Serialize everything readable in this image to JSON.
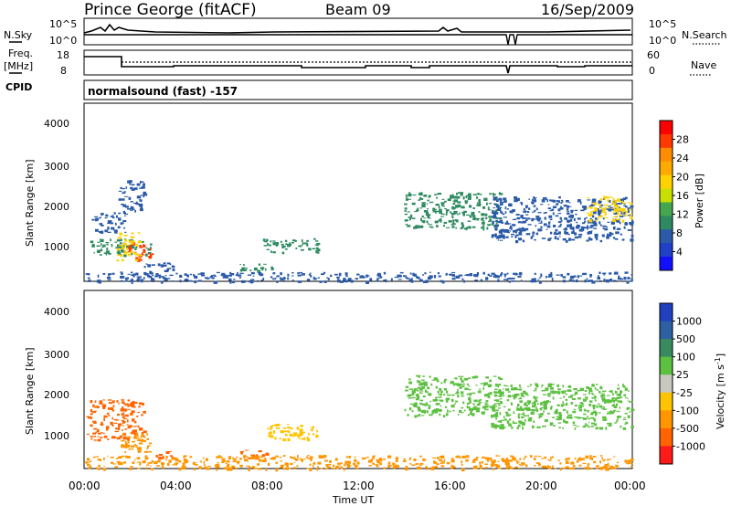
{
  "header": {
    "station": "Prince George (fitACF)",
    "beam": "Beam 09",
    "date": "16/Sep/2009"
  },
  "left_labels": {
    "nsky": "N.Sky",
    "freq": "Freq.",
    "freq_unit": "[MHz]",
    "cpid": "CPID"
  },
  "right_labels": {
    "nsearch": "N.Search",
    "nave": "Nave"
  },
  "top_axes": {
    "noise_left_ticks": [
      "10^5",
      "10^0"
    ],
    "noise_right_ticks": [
      "10^5",
      "10^0"
    ],
    "freq_left_ticks": [
      "18",
      "8"
    ],
    "nave_right_ticks": [
      "60",
      "0"
    ]
  },
  "cpid_text": "normalsound (fast) -157",
  "power_colorbar": {
    "label": "Power [dB]",
    "ticks": [
      "28",
      "24",
      "20",
      "16",
      "12",
      "8",
      "4"
    ],
    "colors": [
      "#ff0000",
      "#ff3a00",
      "#ff8c00",
      "#ffaa00",
      "#ffd200",
      "#c8e000",
      "#46a650",
      "#2e8a60",
      "#2a5aa8",
      "#2040c8",
      "#1010ff"
    ]
  },
  "velocity_colorbar": {
    "label": "Velocity [m s-1]",
    "ticks": [
      "1000",
      "500",
      "100",
      "25",
      "-25",
      "-100",
      "-500",
      "-1000"
    ],
    "colors": [
      "#2040c0",
      "#2c60a0",
      "#3a8a60",
      "#5cc040",
      "#c8c8c0",
      "#ffc400",
      "#ff9600",
      "#ff6400",
      "#ff1a1a"
    ]
  },
  "y_axis": {
    "label": "Slant Range [km]",
    "ticks": [
      "4000",
      "3000",
      "2000",
      "1000"
    ]
  },
  "x_axis": {
    "label": "Time UT",
    "ticks": [
      "00:00",
      "04:00",
      "08:00",
      "12:00",
      "16:00",
      "20:00",
      "00:00"
    ]
  },
  "chart_data": [
    {
      "type": "heatmap",
      "panel": "power",
      "x_range_hours": [
        0,
        24
      ],
      "ylim": [
        180,
        4600
      ],
      "ylabel": "Slant Range [km]",
      "xlabel": "",
      "grid": false,
      "regions_power_db": [
        {
          "t": [
            0.2,
            3.0
          ],
          "range": [
            850,
            1250
          ],
          "power": 12
        },
        {
          "t": [
            1.9,
            3.0
          ],
          "range": [
            700,
            1150
          ],
          "power": 28
        },
        {
          "t": [
            1.4,
            2.4
          ],
          "range": [
            700,
            1400
          ],
          "power": 20
        },
        {
          "t": [
            0.3,
            1.8
          ],
          "range": [
            1400,
            1900
          ],
          "power": 8
        },
        {
          "t": [
            1.5,
            2.6
          ],
          "range": [
            1900,
            2700
          ],
          "power": 8
        },
        {
          "t": [
            2.6,
            3.9
          ],
          "range": [
            400,
            650
          ],
          "power": 8
        },
        {
          "t": [
            6.8,
            8.2
          ],
          "range": [
            450,
            650
          ],
          "power": 12
        },
        {
          "t": [
            7.8,
            10.2
          ],
          "range": [
            900,
            1250
          ],
          "power": 12
        },
        {
          "t": [
            14.0,
            18.2
          ],
          "range": [
            1500,
            2400
          ],
          "power": 12
        },
        {
          "t": [
            17.8,
            24.0
          ],
          "range": [
            1200,
            2300
          ],
          "power": 8
        },
        {
          "t": [
            22.0,
            24.0
          ],
          "range": [
            1700,
            2300
          ],
          "power": 20
        },
        {
          "t": [
            0.0,
            24.0
          ],
          "range": [
            180,
            420
          ],
          "power": 8
        }
      ]
    },
    {
      "type": "heatmap",
      "panel": "velocity",
      "x_range_hours": [
        0,
        24
      ],
      "ylim": [
        180,
        4600
      ],
      "ylabel": "Slant Range [km]",
      "xlabel": "Time UT",
      "grid": false,
      "regions_velocity_ms": [
        {
          "t": [
            0.1,
            2.6
          ],
          "range": [
            900,
            1900
          ],
          "velocity": -500
        },
        {
          "t": [
            1.6,
            3.0
          ],
          "range": [
            600,
            1100
          ],
          "velocity": -100
        },
        {
          "t": [
            3.0,
            3.9
          ],
          "range": [
            450,
            650
          ],
          "velocity": -500
        },
        {
          "t": [
            6.8,
            8.0
          ],
          "range": [
            450,
            650
          ],
          "velocity": -500
        },
        {
          "t": [
            8.0,
            10.2
          ],
          "range": [
            900,
            1300
          ],
          "velocity": -25
        },
        {
          "t": [
            14.0,
            18.2
          ],
          "range": [
            1500,
            2500
          ],
          "velocity": 25
        },
        {
          "t": [
            17.8,
            24.0
          ],
          "range": [
            1200,
            2300
          ],
          "velocity": 25
        },
        {
          "t": [
            0.0,
            24.0
          ],
          "range": [
            180,
            520
          ],
          "velocity": -100
        }
      ]
    }
  ]
}
